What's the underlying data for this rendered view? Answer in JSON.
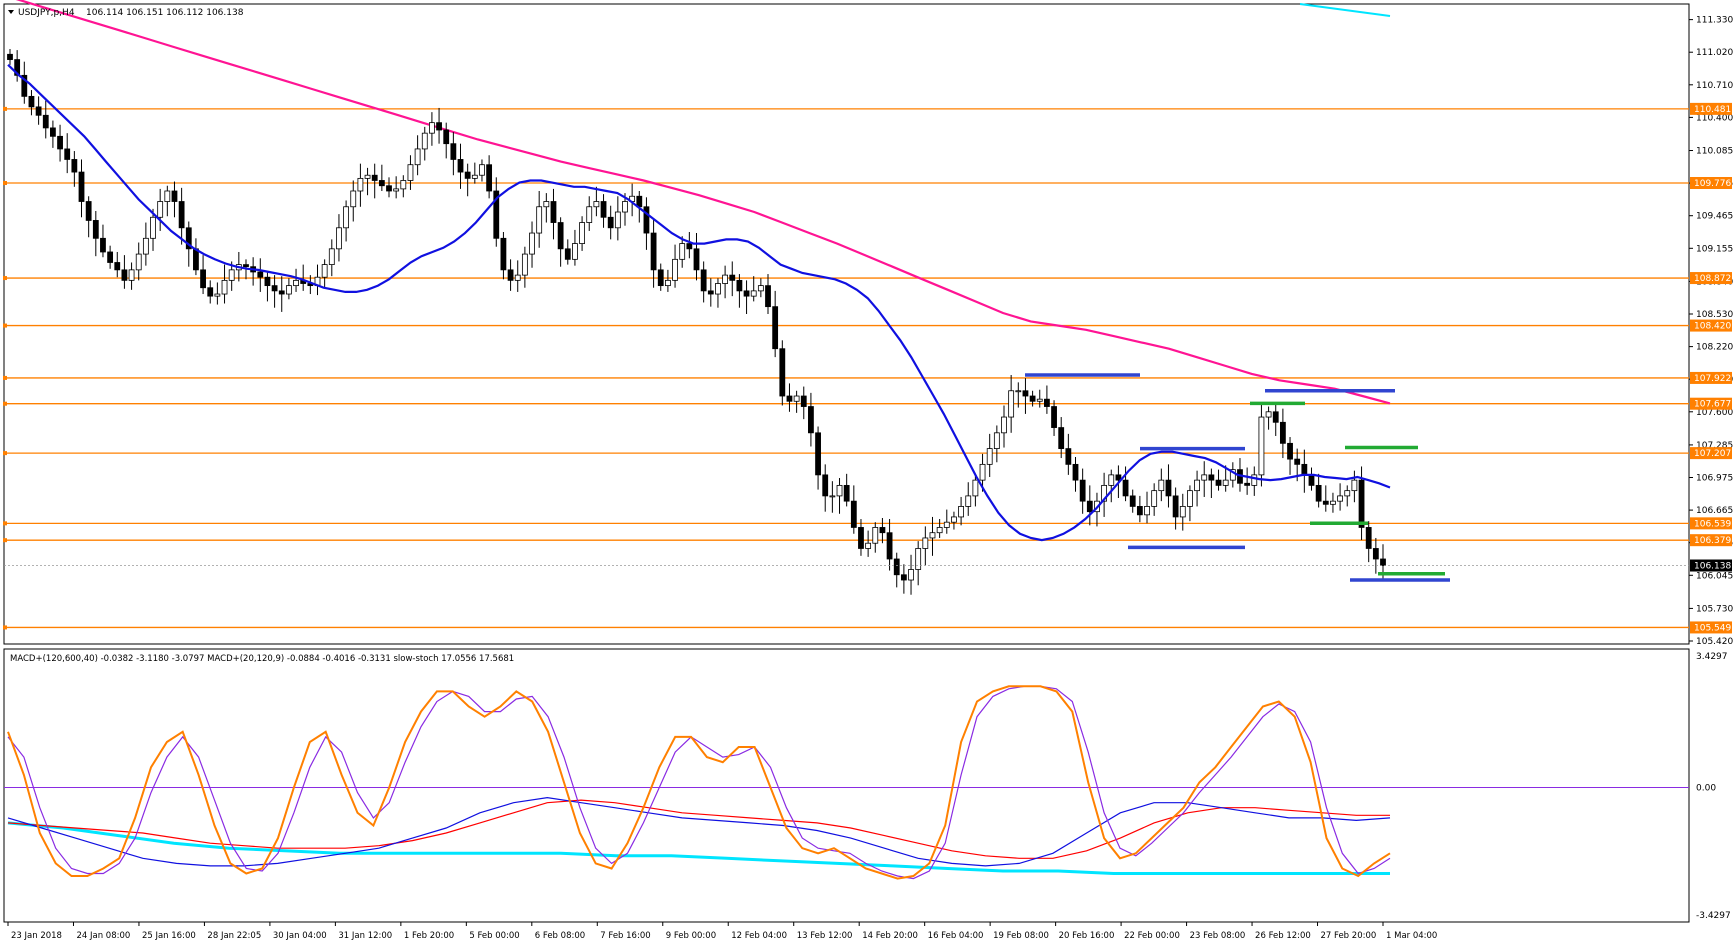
{
  "header": {
    "symbol": "USDJPY,p,H4",
    "ohlc": "106.114 106.151 106.112 106.138"
  },
  "indicator_header": "MACD+(120,600,40) -0.0382 -3.1180 -3.0797  MACD+(20,120,9) -0.0884 -0.4016 -0.3131  slow-stoch 17.0556 17.5681",
  "colors": {
    "bull": "#ffffff",
    "bear": "#000000",
    "ma_fast": "#1010e0",
    "ma_slow": "#ff1493",
    "level": "#ff8000",
    "current": "#000000",
    "stoch_main": "#ff8000",
    "stoch_signal": "#8a2be2",
    "macd_slow": "#00e5ff",
    "signal_red": "#ff0000",
    "macd_blue": "#1010e0",
    "zero_line": "#8a2be2",
    "box_blue": "#3045d0",
    "box_green": "#22aa33"
  },
  "chart_data": [
    {
      "type": "candlestick",
      "ylim": [
        105.42,
        111.45
      ],
      "y_ticks": [
        "111.330",
        "111.020",
        "110.710",
        "110.400",
        "110.085",
        "109.775",
        "109.465",
        "109.155",
        "108.840",
        "108.530",
        "108.220",
        "107.910",
        "107.600",
        "107.285",
        "106.975",
        "106.665",
        "106.355",
        "106.045",
        "105.730",
        "105.420"
      ],
      "x_ticks": [
        "23 Jan 2018",
        "24 Jan 08:00",
        "25 Jan 16:00",
        "28 Jan 22:05",
        "30 Jan 04:00",
        "31 Jan 12:00",
        "1 Feb 20:00",
        "5 Feb 00:00",
        "6 Feb 08:00",
        "7 Feb 16:00",
        "9 Feb 00:00",
        "12 Feb 04:00",
        "13 Feb 12:00",
        "14 Feb 20:00",
        "16 Feb 04:00",
        "19 Feb 08:00",
        "20 Feb 16:00",
        "22 Feb 00:00",
        "23 Feb 08:00",
        "26 Feb 12:00",
        "27 Feb 20:00",
        "1 Mar 04:00"
      ],
      "levels": [
        "110.481",
        "109.776",
        "108.872",
        "108.420",
        "107.922",
        "107.677",
        "107.207",
        "106.539",
        "106.379",
        "105.549"
      ],
      "current_price": "106.138",
      "closes": [
        110.95,
        110.8,
        110.6,
        110.5,
        110.42,
        110.3,
        110.22,
        110.1,
        110.0,
        109.88,
        109.6,
        109.42,
        109.25,
        109.12,
        109.02,
        108.95,
        108.85,
        108.95,
        109.1,
        109.25,
        109.45,
        109.6,
        109.7,
        109.6,
        109.35,
        109.15,
        108.95,
        108.78,
        108.7,
        108.72,
        108.85,
        108.95,
        109.0,
        108.98,
        108.93,
        108.88,
        108.8,
        108.75,
        108.72,
        108.8,
        108.85,
        108.82,
        108.8,
        108.88,
        109.0,
        109.15,
        109.35,
        109.55,
        109.7,
        109.82,
        109.85,
        109.8,
        109.75,
        109.7,
        109.72,
        109.8,
        109.95,
        110.1,
        110.25,
        110.35,
        110.28,
        110.15,
        110.0,
        109.88,
        109.82,
        109.85,
        109.95,
        109.7,
        109.25,
        108.95,
        108.85,
        108.9,
        109.1,
        109.3,
        109.55,
        109.6,
        109.4,
        109.15,
        109.05,
        109.2,
        109.4,
        109.55,
        109.6,
        109.45,
        109.35,
        109.5,
        109.6,
        109.65,
        109.55,
        109.3,
        108.95,
        108.8,
        108.85,
        109.05,
        109.2,
        109.15,
        108.95,
        108.75,
        108.72,
        108.82,
        108.9,
        108.85,
        108.75,
        108.7,
        108.75,
        108.8,
        108.6,
        108.2,
        107.75,
        107.7,
        107.75,
        107.65,
        107.4,
        107.0,
        106.8,
        106.8,
        106.9,
        106.75,
        106.5,
        106.3,
        106.35,
        106.5,
        106.45,
        106.2,
        106.05,
        106.0,
        106.1,
        106.3,
        106.4,
        106.45,
        106.5,
        106.55,
        106.6,
        106.7,
        106.8,
        106.95,
        107.1,
        107.25,
        107.4,
        107.55,
        107.8,
        107.8,
        107.75,
        107.7,
        107.72,
        107.65,
        107.45,
        107.25,
        107.1,
        106.95,
        106.75,
        106.65,
        106.75,
        106.9,
        107.0,
        106.95,
        106.8,
        106.7,
        106.62,
        106.7,
        106.85,
        106.95,
        106.8,
        106.6,
        106.7,
        106.85,
        106.95,
        107.0,
        106.95,
        106.9,
        106.95,
        107.05,
        106.92,
        106.9,
        107.0,
        107.55,
        107.6,
        107.5,
        107.3,
        107.15,
        107.1,
        107.0,
        106.9,
        106.75,
        106.72,
        106.75,
        106.8,
        106.85,
        106.95,
        106.5,
        106.3,
        106.2,
        106.138
      ],
      "ma_fast": [
        110.9,
        110.8,
        110.72,
        110.62,
        110.52,
        110.42,
        110.32,
        110.22,
        110.1,
        109.98,
        109.86,
        109.74,
        109.62,
        109.52,
        109.42,
        109.32,
        109.24,
        109.16,
        109.1,
        109.05,
        109.01,
        108.98,
        108.96,
        108.95,
        108.93,
        108.91,
        108.89,
        108.86,
        108.82,
        108.78,
        108.76,
        108.74,
        108.74,
        108.76,
        108.8,
        108.86,
        108.94,
        109.02,
        109.08,
        109.12,
        109.16,
        109.22,
        109.3,
        109.4,
        109.52,
        109.64,
        109.72,
        109.78,
        109.8,
        109.8,
        109.78,
        109.76,
        109.74,
        109.74,
        109.72,
        109.7,
        109.68,
        109.62,
        109.54,
        109.46,
        109.38,
        109.3,
        109.24,
        109.2,
        109.2,
        109.22,
        109.24,
        109.24,
        109.22,
        109.16,
        109.08,
        109.0,
        108.96,
        108.92,
        108.9,
        108.88,
        108.86,
        108.82,
        108.76,
        108.68,
        108.56,
        108.42,
        108.28,
        108.12,
        107.94,
        107.76,
        107.58,
        107.38,
        107.18,
        106.98,
        106.8,
        106.64,
        106.52,
        106.44,
        106.4,
        106.38,
        106.4,
        106.44,
        106.5,
        106.58,
        106.68,
        106.8,
        106.92,
        107.04,
        107.14,
        107.2,
        107.22,
        107.22,
        107.2,
        107.18,
        107.16,
        107.12,
        107.06,
        107.0,
        106.98,
        106.96,
        106.95,
        106.96,
        106.98,
        107.0,
        107.0,
        106.98,
        106.97,
        106.96,
        106.98,
        106.95,
        106.92,
        106.88
      ],
      "ma_slow": [
        111.55,
        111.47,
        111.39,
        111.31,
        111.23,
        111.15,
        111.07,
        110.99,
        110.91,
        110.83,
        110.75,
        110.67,
        110.59,
        110.51,
        110.43,
        110.35,
        110.27,
        110.19,
        110.12,
        110.05,
        109.98,
        109.92,
        109.86,
        109.8,
        109.73,
        109.66,
        109.58,
        109.5,
        109.4,
        109.3,
        109.2,
        109.09,
        108.98,
        108.87,
        108.76,
        108.65,
        108.54,
        108.46,
        108.42,
        108.38,
        108.32,
        108.26,
        108.2,
        108.12,
        108.04,
        107.96,
        107.9,
        107.86,
        107.82,
        107.75,
        107.68
      ],
      "stoch_main": [
        72,
        55,
        32,
        20,
        15,
        15,
        18,
        22,
        38,
        58,
        68,
        72,
        55,
        35,
        20,
        16,
        18,
        30,
        50,
        68,
        72,
        55,
        40,
        35,
        50,
        68,
        80,
        88,
        88,
        82,
        78,
        82,
        88,
        84,
        72,
        52,
        32,
        20,
        18,
        28,
        42,
        58,
        70,
        70,
        62,
        60,
        66,
        66,
        50,
        34,
        26,
        24,
        26,
        22,
        18,
        16,
        14,
        15,
        20,
        35,
        68,
        84,
        88,
        90,
        90,
        90,
        88,
        80,
        52,
        30,
        22,
        24,
        30,
        36,
        42,
        52,
        58,
        66,
        74,
        82,
        84,
        78,
        60,
        30,
        18,
        15,
        20,
        24
      ],
      "stoch_signal": [
        70,
        62,
        42,
        26,
        18,
        16,
        16,
        20,
        30,
        48,
        62,
        70,
        62,
        45,
        28,
        18,
        17,
        24,
        40,
        58,
        70,
        64,
        48,
        38,
        44,
        60,
        74,
        84,
        88,
        86,
        80,
        80,
        85,
        86,
        78,
        62,
        42,
        26,
        20,
        24,
        36,
        50,
        64,
        70,
        66,
        62,
        63,
        66,
        58,
        42,
        30,
        26,
        25,
        24,
        20,
        17,
        15,
        14,
        17,
        28,
        55,
        78,
        86,
        89,
        90,
        90,
        89,
        84,
        64,
        40,
        26,
        23,
        28,
        34,
        40,
        48,
        55,
        62,
        70,
        78,
        83,
        80,
        68,
        42,
        24,
        16,
        18,
        22
      ],
      "macd_blue": [
        38,
        34,
        30,
        26,
        22,
        20,
        19,
        19,
        20,
        22,
        24,
        26,
        30,
        34,
        40,
        44,
        46,
        44,
        42,
        40,
        38,
        37,
        36,
        35,
        33,
        30,
        26,
        22,
        20,
        19,
        20,
        24,
        32,
        40,
        44,
        44,
        42,
        40,
        38,
        38,
        37,
        38
      ],
      "signal_red": [
        36,
        35,
        34,
        33,
        32,
        30,
        28,
        27,
        26,
        26,
        26,
        27,
        29,
        32,
        36,
        40,
        44,
        45,
        44,
        42,
        40,
        39,
        38,
        37,
        36,
        34,
        31,
        28,
        25,
        23,
        22,
        22,
        25,
        30,
        36,
        40,
        42,
        42,
        41,
        40,
        39,
        39
      ],
      "macd_slow": [
        36,
        34,
        31,
        28,
        26,
        25,
        24,
        24,
        24,
        24,
        24,
        23,
        23,
        22,
        21,
        20,
        19,
        18,
        17,
        17,
        16,
        16,
        16,
        16,
        16,
        16
      ]
    }
  ]
}
